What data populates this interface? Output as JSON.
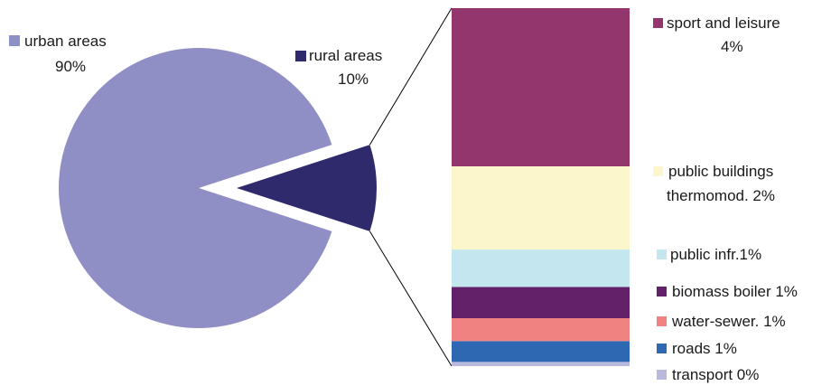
{
  "chart_data": {
    "type": "pie",
    "pie": {
      "slices": [
        {
          "label": "urban areas",
          "value_label": "90%",
          "value": 90,
          "color": "#8f8fc6"
        },
        {
          "label": "rural areas",
          "value_label": "10%",
          "value": 10,
          "color": "#2f2a6b"
        }
      ]
    },
    "breakdown": {
      "type": "stacked-bar",
      "parent": "rural areas",
      "segments": [
        {
          "label": "sport and leisure",
          "value_text": "4%",
          "value": 3.8,
          "color": "#93366e"
        },
        {
          "label": "public buildings",
          "label2": "thermomod. 2%",
          "value": 2.0,
          "color": "#fbf6cc"
        },
        {
          "label": "public infr.1%",
          "value": 0.9,
          "color": "#c4e6ef"
        },
        {
          "label": "biomass boiler 1%",
          "value": 0.75,
          "color": "#622168"
        },
        {
          "label": "water-sewer. 1%",
          "value": 0.55,
          "color": "#f08282"
        },
        {
          "label": "roads 1%",
          "value": 0.5,
          "color": "#2e67b2"
        },
        {
          "label": "transport 0%",
          "value": 0.1,
          "color": "#b9b9dd"
        }
      ]
    },
    "legend_position": "right"
  }
}
